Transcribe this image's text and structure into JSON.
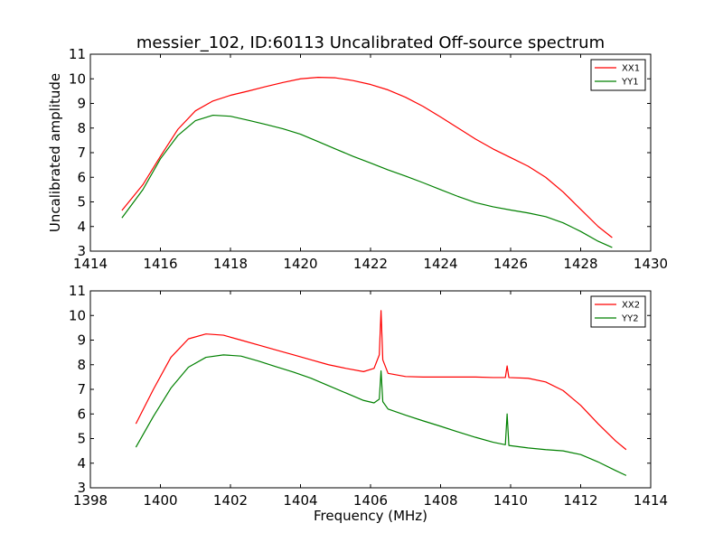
{
  "chart_data": [
    {
      "type": "line",
      "title": "messier_102, ID:60113 Uncalibrated Off-source spectrum",
      "xlabel": "",
      "ylabel": "Uncalibrated amplitude",
      "xlim": [
        1414,
        1430
      ],
      "ylim": [
        3,
        11
      ],
      "xticks": [
        1414,
        1416,
        1418,
        1420,
        1422,
        1424,
        1426,
        1428,
        1430
      ],
      "yticks": [
        3,
        4,
        5,
        6,
        7,
        8,
        9,
        10,
        11
      ],
      "grid": false,
      "legend": "top-right",
      "series": [
        {
          "name": "XX1",
          "color": "#ff0000",
          "x": [
            1414.9,
            1415.5,
            1416.0,
            1416.5,
            1417.0,
            1417.5,
            1418.0,
            1418.5,
            1419.0,
            1419.5,
            1420.0,
            1420.5,
            1421.0,
            1421.5,
            1422.0,
            1422.5,
            1423.0,
            1423.5,
            1424.0,
            1424.5,
            1425.0,
            1425.5,
            1426.0,
            1426.5,
            1427.0,
            1427.5,
            1428.0,
            1428.5,
            1428.9
          ],
          "values": [
            4.65,
            5.7,
            6.85,
            7.95,
            8.7,
            9.1,
            9.33,
            9.5,
            9.68,
            9.85,
            10.0,
            10.06,
            10.04,
            9.93,
            9.77,
            9.55,
            9.25,
            8.88,
            8.45,
            8.0,
            7.55,
            7.15,
            6.8,
            6.45,
            6.0,
            5.4,
            4.7,
            4.0,
            3.55
          ]
        },
        {
          "name": "YY1",
          "color": "#008000",
          "x": [
            1414.9,
            1415.5,
            1416.0,
            1416.5,
            1417.0,
            1417.5,
            1418.0,
            1418.5,
            1419.0,
            1419.5,
            1420.0,
            1420.5,
            1421.0,
            1421.5,
            1422.0,
            1422.5,
            1423.0,
            1423.5,
            1424.0,
            1424.5,
            1425.0,
            1425.5,
            1426.0,
            1426.5,
            1427.0,
            1427.5,
            1428.0,
            1428.5,
            1428.9
          ],
          "values": [
            4.35,
            5.5,
            6.75,
            7.7,
            8.3,
            8.52,
            8.48,
            8.32,
            8.15,
            7.97,
            7.75,
            7.45,
            7.15,
            6.85,
            6.58,
            6.3,
            6.05,
            5.78,
            5.5,
            5.22,
            4.97,
            4.8,
            4.67,
            4.55,
            4.4,
            4.15,
            3.8,
            3.4,
            3.15
          ]
        }
      ]
    },
    {
      "type": "line",
      "title": "",
      "xlabel": "Frequency (MHz)",
      "ylabel": "",
      "xlim": [
        1398,
        1414
      ],
      "ylim": [
        3,
        11
      ],
      "xticks": [
        1398,
        1400,
        1402,
        1404,
        1406,
        1408,
        1410,
        1412,
        1414
      ],
      "yticks": [
        3,
        4,
        5,
        6,
        7,
        8,
        9,
        10,
        11
      ],
      "grid": false,
      "legend": "top-right",
      "series": [
        {
          "name": "XX2",
          "color": "#ff0000",
          "x": [
            1399.3,
            1399.8,
            1400.3,
            1400.8,
            1401.3,
            1401.8,
            1402.3,
            1402.8,
            1403.3,
            1403.8,
            1404.3,
            1404.8,
            1405.3,
            1405.8,
            1406.1,
            1406.25,
            1406.3,
            1406.35,
            1406.5,
            1407.0,
            1407.5,
            1408.0,
            1408.5,
            1409.0,
            1409.5,
            1409.85,
            1409.9,
            1409.95,
            1410.5,
            1411.0,
            1411.5,
            1412.0,
            1412.5,
            1413.0,
            1413.3
          ],
          "values": [
            5.6,
            7.0,
            8.3,
            9.05,
            9.25,
            9.2,
            9.0,
            8.8,
            8.6,
            8.4,
            8.2,
            8.0,
            7.85,
            7.72,
            7.85,
            8.4,
            10.2,
            8.2,
            7.65,
            7.52,
            7.5,
            7.5,
            7.5,
            7.5,
            7.48,
            7.48,
            7.95,
            7.48,
            7.45,
            7.3,
            6.95,
            6.35,
            5.6,
            4.9,
            4.55
          ]
        },
        {
          "name": "YY2",
          "color": "#008000",
          "x": [
            1399.3,
            1399.8,
            1400.3,
            1400.8,
            1401.3,
            1401.8,
            1402.3,
            1402.8,
            1403.3,
            1403.8,
            1404.3,
            1404.8,
            1405.3,
            1405.8,
            1406.1,
            1406.25,
            1406.3,
            1406.35,
            1406.5,
            1407.0,
            1407.5,
            1408.0,
            1408.5,
            1409.0,
            1409.5,
            1409.85,
            1409.9,
            1409.95,
            1410.5,
            1411.0,
            1411.5,
            1412.0,
            1412.5,
            1413.0,
            1413.3
          ],
          "values": [
            4.65,
            5.9,
            7.05,
            7.9,
            8.3,
            8.4,
            8.35,
            8.15,
            7.92,
            7.7,
            7.45,
            7.15,
            6.85,
            6.55,
            6.45,
            6.6,
            7.75,
            6.5,
            6.2,
            5.95,
            5.72,
            5.5,
            5.27,
            5.05,
            4.85,
            4.75,
            6.0,
            4.72,
            4.62,
            4.55,
            4.5,
            4.35,
            4.05,
            3.7,
            3.5
          ]
        }
      ]
    }
  ]
}
